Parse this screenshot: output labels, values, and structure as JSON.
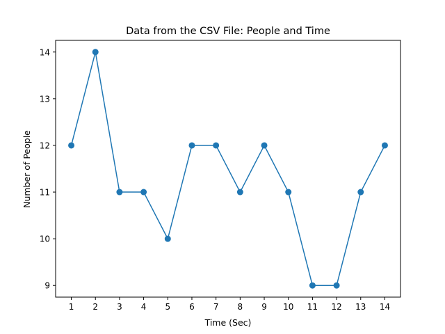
{
  "chart_data": {
    "type": "line",
    "title": "Data from the CSV File: People and Time",
    "xlabel": "Time (Sec)",
    "ylabel": "Number of People",
    "x": [
      1,
      2,
      3,
      4,
      5,
      6,
      7,
      8,
      9,
      10,
      11,
      12,
      13,
      14
    ],
    "series": [
      {
        "values": [
          12,
          14,
          11,
          11,
          10,
          12,
          12,
          11,
          12,
          11,
          9,
          9,
          11,
          12
        ],
        "color": "#1f77b4",
        "marker": "circle"
      }
    ],
    "xticks": [
      "1",
      "2",
      "3",
      "4",
      "5",
      "6",
      "7",
      "8",
      "9",
      "10",
      "11",
      "12",
      "13",
      "14"
    ],
    "yticks": [
      "9",
      "10",
      "11",
      "12",
      "13",
      "14"
    ],
    "xlim": [
      0.35,
      14.65
    ],
    "ylim": [
      8.75,
      14.25
    ],
    "grid": false,
    "legend": false
  }
}
